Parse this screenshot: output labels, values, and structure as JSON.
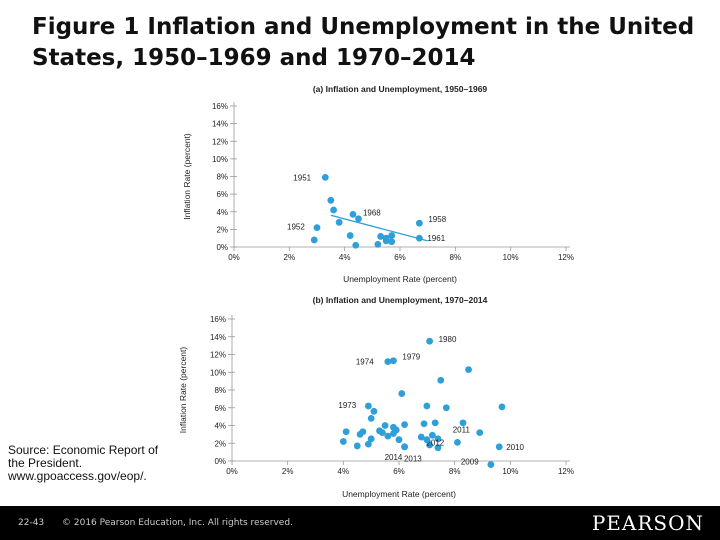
{
  "slide": {
    "title": "Figure 1 Inflation and Unemployment in the United States, 1950–1969 and 1970–2014",
    "source": "Source: Economic Report of the President. www.gpoaccess.gov/eop/.",
    "slide_number": "22-43",
    "copyright": "© 2016 Pearson Education, Inc. All rights reserved.",
    "logo": "PEARSON"
  },
  "colors": {
    "point": "#2e9fd8",
    "trend": "#2e9fd8",
    "axis": "#999999",
    "text": "#222222",
    "footer": "#000000"
  },
  "chart_data": [
    {
      "type": "scatter",
      "title": "(a) Inflation and Unemployment, 1950–1969",
      "xlabel": "Unemployment Rate (percent)",
      "ylabel": "Inflation Rate (percent)",
      "xlim": [
        0,
        12
      ],
      "ylim": [
        0,
        16
      ],
      "x_ticks": [
        "0%",
        "2%",
        "4%",
        "6%",
        "8%",
        "10%",
        "12%"
      ],
      "y_ticks": [
        "0%",
        "2%",
        "4%",
        "6%",
        "8%",
        "10%",
        "12%",
        "14%",
        "16%"
      ],
      "grid": false,
      "trend_line": {
        "x": [
          3.5,
          7.0
        ],
        "y": [
          3.6,
          0.7
        ]
      },
      "points": [
        {
          "x": 3.3,
          "y": 7.9,
          "label": "1951"
        },
        {
          "x": 3.5,
          "y": 5.3
        },
        {
          "x": 3.6,
          "y": 4.2
        },
        {
          "x": 3.0,
          "y": 2.2,
          "label": "1952"
        },
        {
          "x": 2.9,
          "y": 0.8
        },
        {
          "x": 3.8,
          "y": 2.8
        },
        {
          "x": 4.5,
          "y": 3.2
        },
        {
          "x": 4.3,
          "y": 3.7,
          "label": "1968"
        },
        {
          "x": 4.2,
          "y": 1.3
        },
        {
          "x": 4.4,
          "y": 0.2
        },
        {
          "x": 5.3,
          "y": 1.2
        },
        {
          "x": 5.5,
          "y": 1.0
        },
        {
          "x": 5.7,
          "y": 1.3
        },
        {
          "x": 5.5,
          "y": 0.7
        },
        {
          "x": 5.7,
          "y": 0.6
        },
        {
          "x": 6.7,
          "y": 2.7,
          "label": "1958"
        },
        {
          "x": 6.7,
          "y": 1.0,
          "label": "1961"
        },
        {
          "x": 5.2,
          "y": 0.3
        }
      ]
    },
    {
      "type": "scatter",
      "title": "(b) Inflation and Unemployment, 1970–2014",
      "xlabel": "Unemployment Rate (percent)",
      "ylabel": "Inflation Rate (percent)",
      "xlim": [
        0,
        12
      ],
      "ylim": [
        0,
        16
      ],
      "x_ticks": [
        "0%",
        "2%",
        "4%",
        "6%",
        "8%",
        "10%",
        "12%"
      ],
      "y_ticks": [
        "0%",
        "2%",
        "4%",
        "6%",
        "8%",
        "10%",
        "12%",
        "14%",
        "16%"
      ],
      "grid": false,
      "points": [
        {
          "x": 7.1,
          "y": 13.5,
          "label": "1980"
        },
        {
          "x": 5.6,
          "y": 11.2,
          "label": "1974"
        },
        {
          "x": 5.8,
          "y": 11.3,
          "label": "1979"
        },
        {
          "x": 8.5,
          "y": 10.3
        },
        {
          "x": 7.5,
          "y": 9.1
        },
        {
          "x": 6.1,
          "y": 7.6
        },
        {
          "x": 4.9,
          "y": 6.2,
          "label": "1973"
        },
        {
          "x": 5.1,
          "y": 5.6
        },
        {
          "x": 5.0,
          "y": 4.8
        },
        {
          "x": 7.0,
          "y": 6.2
        },
        {
          "x": 7.7,
          "y": 6.0
        },
        {
          "x": 9.7,
          "y": 6.1
        },
        {
          "x": 6.2,
          "y": 4.1
        },
        {
          "x": 5.5,
          "y": 4.0
        },
        {
          "x": 5.9,
          "y": 3.5
        },
        {
          "x": 6.9,
          "y": 4.2
        },
        {
          "x": 7.3,
          "y": 4.3
        },
        {
          "x": 8.3,
          "y": 4.3
        },
        {
          "x": 4.6,
          "y": 3.0
        },
        {
          "x": 4.7,
          "y": 3.3
        },
        {
          "x": 5.4,
          "y": 3.2
        },
        {
          "x": 5.6,
          "y": 2.8
        },
        {
          "x": 5.8,
          "y": 3.1
        },
        {
          "x": 6.0,
          "y": 2.4
        },
        {
          "x": 6.8,
          "y": 2.7
        },
        {
          "x": 7.2,
          "y": 2.9
        },
        {
          "x": 7.4,
          "y": 2.5
        },
        {
          "x": 5.0,
          "y": 2.5
        },
        {
          "x": 4.1,
          "y": 3.3
        },
        {
          "x": 4.0,
          "y": 2.2
        },
        {
          "x": 4.5,
          "y": 1.7
        },
        {
          "x": 6.2,
          "y": 1.6
        },
        {
          "x": 7.1,
          "y": 1.8
        },
        {
          "x": 4.9,
          "y": 1.9
        },
        {
          "x": 5.3,
          "y": 3.4
        },
        {
          "x": 6.2,
          "y": 1.6,
          "label": "2014"
        },
        {
          "x": 7.4,
          "y": 1.5,
          "label": "2013"
        },
        {
          "x": 8.1,
          "y": 2.1,
          "label": "2012"
        },
        {
          "x": 8.9,
          "y": 3.2,
          "label": "2011"
        },
        {
          "x": 9.6,
          "y": 1.6,
          "label": "2010"
        },
        {
          "x": 9.3,
          "y": -0.4,
          "label": "2009"
        },
        {
          "x": 5.8,
          "y": 3.8
        },
        {
          "x": 7.0,
          "y": 2.4
        }
      ]
    }
  ]
}
